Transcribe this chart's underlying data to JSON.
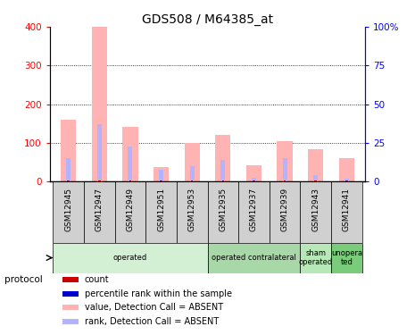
{
  "title": "GDS508 / M64385_at",
  "samples": [
    "GSM12945",
    "GSM12947",
    "GSM12949",
    "GSM12951",
    "GSM12953",
    "GSM12935",
    "GSM12937",
    "GSM12939",
    "GSM12943",
    "GSM12941"
  ],
  "value_absent": [
    160,
    400,
    142,
    38,
    100,
    122,
    42,
    105,
    84,
    62
  ],
  "rank_absent_pct": [
    15,
    37,
    23,
    8,
    10,
    14,
    2.5,
    15,
    4.5,
    2
  ],
  "ylim_left": [
    0,
    400
  ],
  "ylim_right": [
    0,
    100
  ],
  "yticks_left": [
    0,
    100,
    200,
    300,
    400
  ],
  "yticks_right": [
    0,
    25,
    50,
    75,
    100
  ],
  "yticklabels_right": [
    "0",
    "25",
    "50",
    "75",
    "100%"
  ],
  "color_value_absent": "#ffb3b3",
  "color_rank_absent": "#b3b3ff",
  "color_count": "#cc0000",
  "color_rank_present": "#0000cc",
  "protocol_groups": [
    {
      "label": "operated",
      "start": 0,
      "end": 5,
      "color": "#d4f0d4"
    },
    {
      "label": "operated contralateral",
      "start": 5,
      "end": 8,
      "color": "#a8d8a8"
    },
    {
      "label": "sham\noperated",
      "start": 8,
      "end": 9,
      "color": "#b8e8b8"
    },
    {
      "label": "unopera\nted",
      "start": 9,
      "end": 10,
      "color": "#7acc7a"
    }
  ],
  "legend_items": [
    {
      "label": "count",
      "color": "#cc0000"
    },
    {
      "label": "percentile rank within the sample",
      "color": "#0000cc"
    },
    {
      "label": "value, Detection Call = ABSENT",
      "color": "#ffb3b3"
    },
    {
      "label": "rank, Detection Call = ABSENT",
      "color": "#b3b3ff"
    }
  ],
  "protocol_label": "protocol",
  "pink_bar_width": 0.5,
  "blue_bar_width": 0.15
}
